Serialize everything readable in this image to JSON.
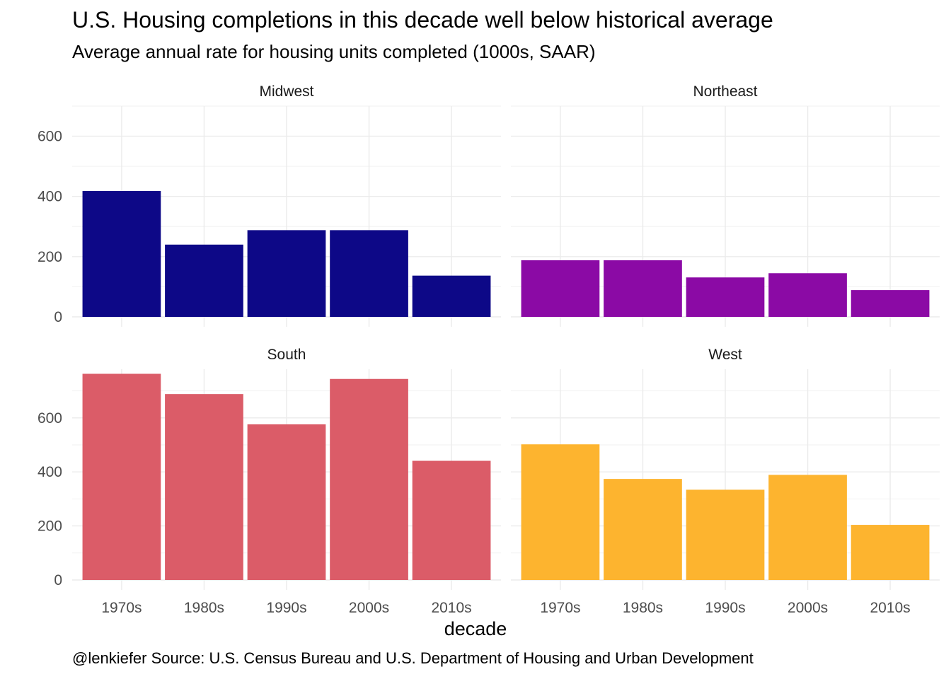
{
  "title": "U.S. Housing completions in this decade well below historical average",
  "subtitle": "Average annual rate for housing units completed (1000s, SAAR)",
  "caption": "@lenkiefer Source: U.S. Census Bureau and U.S. Department of Housing and Urban Development",
  "chart_data": {
    "type": "bar",
    "layout": "facet-wrap 2x2, free y scales",
    "xlabel": "decade",
    "ylabel": "",
    "categories": [
      "1970s",
      "1980s",
      "1990s",
      "2000s",
      "2010s"
    ],
    "grid": true,
    "legend": "none",
    "panels": [
      {
        "name": "Midwest",
        "color": "#0D0887",
        "ylim": [
          0,
          700
        ],
        "yticks": [
          0,
          200,
          400,
          600
        ],
        "values": [
          418,
          240,
          288,
          288,
          137
        ]
      },
      {
        "name": "Northeast",
        "color": "#8B0AA5",
        "ylim": [
          0,
          700
        ],
        "yticks": [
          0,
          200,
          400,
          600
        ],
        "values": [
          188,
          188,
          131,
          145,
          89
        ]
      },
      {
        "name": "South",
        "color": "#DB5C68",
        "ylim": [
          0,
          780
        ],
        "yticks": [
          0,
          200,
          400,
          600
        ],
        "values": [
          763,
          688,
          576,
          744,
          441
        ]
      },
      {
        "name": "West",
        "color": "#FDB42F",
        "ylim": [
          0,
          780
        ],
        "yticks": [
          0,
          200,
          400,
          600
        ],
        "values": [
          502,
          374,
          334,
          389,
          204
        ]
      }
    ]
  }
}
